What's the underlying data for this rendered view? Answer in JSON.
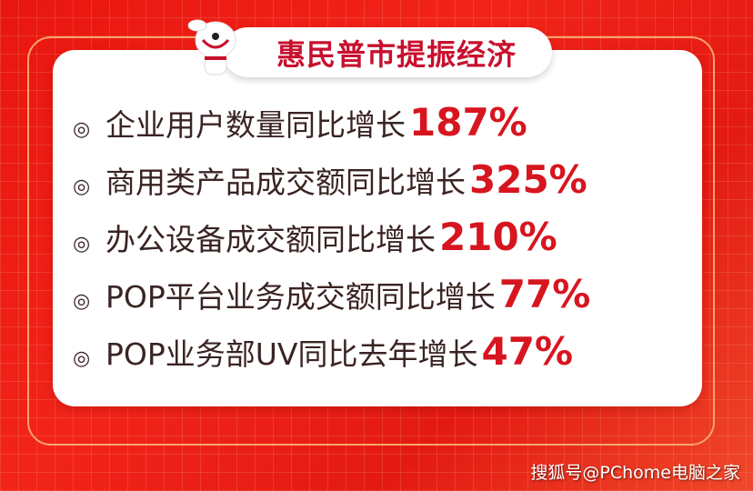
{
  "title": "惠民普市提振经济",
  "bullet_icon": "double-circle-icon",
  "colors": {
    "accent": "#d7151f",
    "text": "#3a2423",
    "background": "#e8160f"
  },
  "items": [
    {
      "label": "企业用户数量同比增长",
      "value": "187%"
    },
    {
      "label": "商用类产品成交额同比增长",
      "value": "325%"
    },
    {
      "label": "办公设备成交额同比增长 ",
      "value": "210%"
    },
    {
      "label": "POP平台业务成交额同比增长 ",
      "value": "77%"
    },
    {
      "label": "POP业务部UV同比去年增长 ",
      "value": "47%"
    }
  ],
  "watermark": "搜狐号@PChome电脑之家"
}
